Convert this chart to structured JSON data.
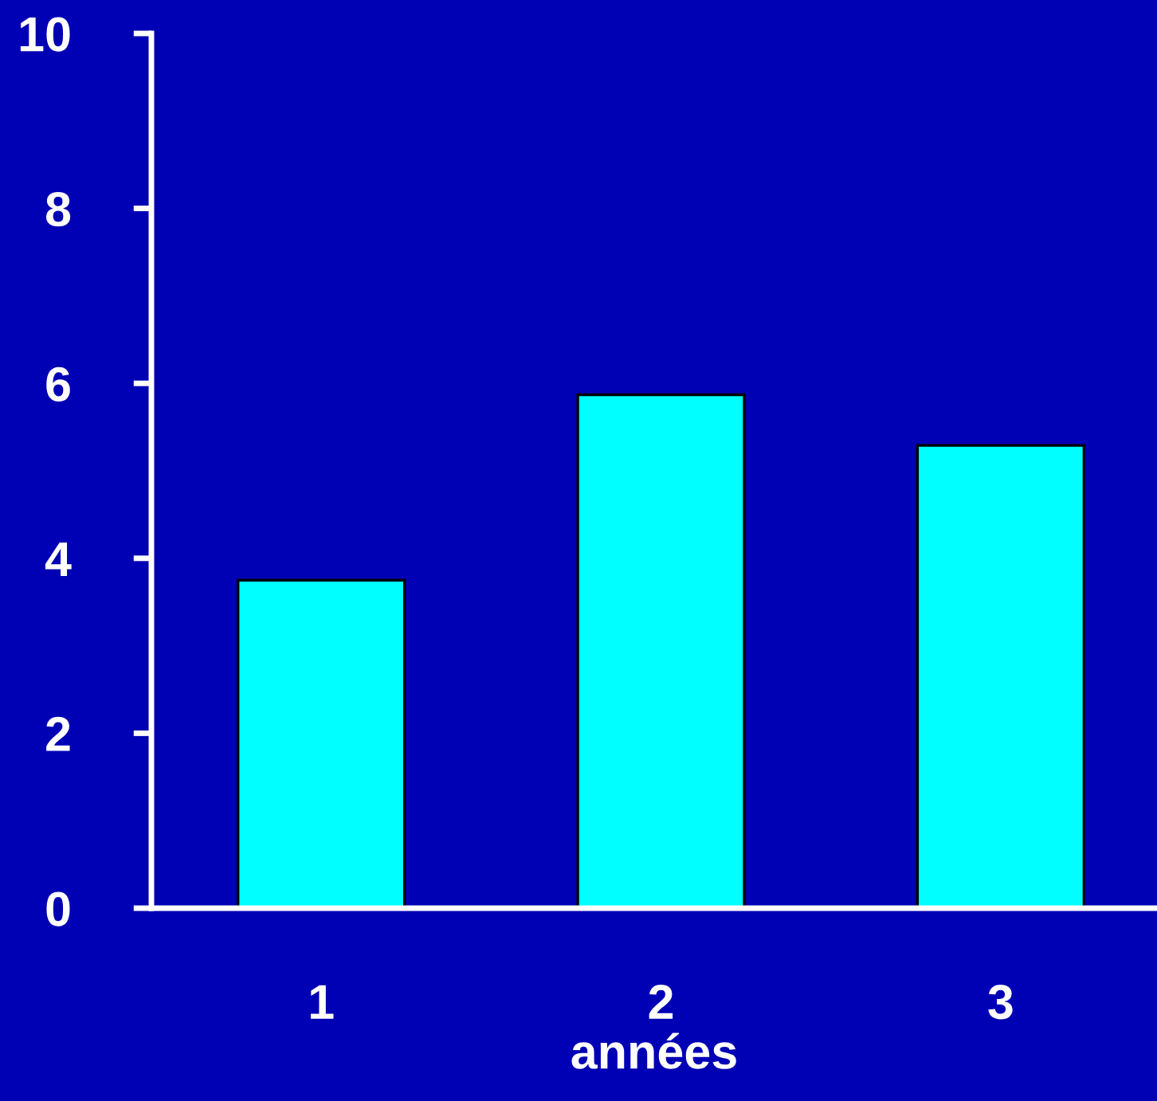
{
  "chart_data": {
    "type": "bar",
    "xlabel": "années",
    "categories": [
      "1",
      "2",
      "3"
    ],
    "values": [
      3.75,
      5.87,
      5.29
    ],
    "color": "#00ffff",
    "ylim": [
      0,
      10
    ],
    "yticks": [
      0,
      2,
      4,
      6,
      8,
      10
    ],
    "grid": false,
    "legend": false
  }
}
